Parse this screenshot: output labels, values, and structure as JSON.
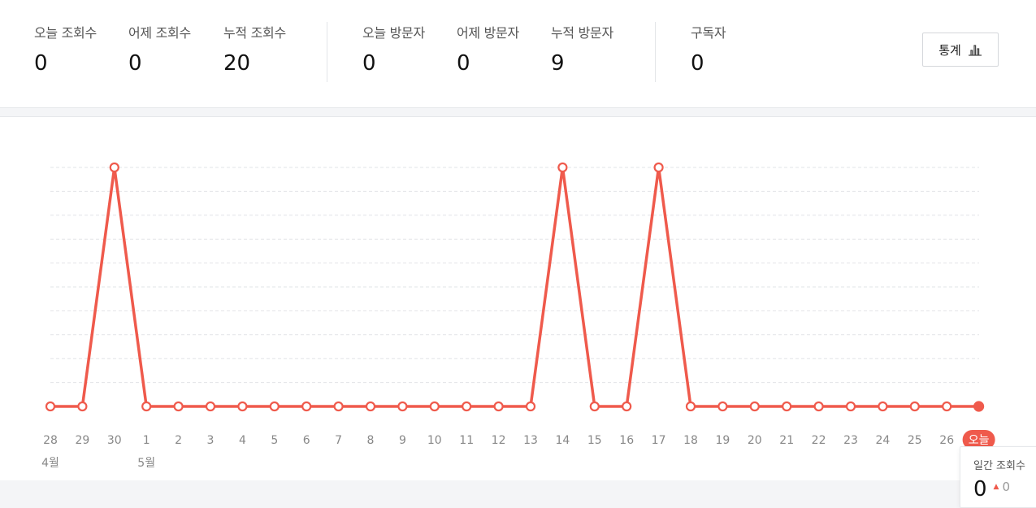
{
  "stats": [
    {
      "label": "오늘 조회수",
      "value": "0"
    },
    {
      "label": "어제 조회수",
      "value": "0"
    },
    {
      "label": "누적 조회수",
      "value": "20"
    },
    {
      "label": "오늘 방문자",
      "value": "0"
    },
    {
      "label": "어제 방문자",
      "value": "0"
    },
    {
      "label": "누적 방문자",
      "value": "9"
    },
    {
      "label": "구독자",
      "value": "0"
    }
  ],
  "toolbar": {
    "stats_button_label": "통계",
    "stats_button_icon": "bar-chart-icon"
  },
  "tooltip": {
    "label": "일간 조회수",
    "value": "0",
    "delta": "0"
  },
  "colors": {
    "accent": "#ef5a4c",
    "grid": "#e2e4e7",
    "text_muted": "#888888"
  },
  "chart_data": {
    "type": "line",
    "x": [
      "28",
      "29",
      "30",
      "1",
      "2",
      "3",
      "4",
      "5",
      "6",
      "7",
      "8",
      "9",
      "10",
      "11",
      "12",
      "13",
      "14",
      "15",
      "16",
      "17",
      "18",
      "19",
      "20",
      "21",
      "22",
      "23",
      "24",
      "25",
      "26",
      "오늘"
    ],
    "month_labels": [
      {
        "at": "28",
        "label": "4월"
      },
      {
        "at": "1",
        "label": "5월"
      }
    ],
    "series": [
      {
        "values": [
          0,
          0,
          8,
          0,
          0,
          0,
          0,
          0,
          0,
          0,
          0,
          0,
          0,
          0,
          0,
          0,
          8,
          0,
          0,
          8,
          0,
          0,
          0,
          0,
          0,
          0,
          0,
          0,
          0,
          0
        ]
      }
    ],
    "ylim": [
      0,
      8
    ],
    "grid": true,
    "highlight_last": true
  }
}
